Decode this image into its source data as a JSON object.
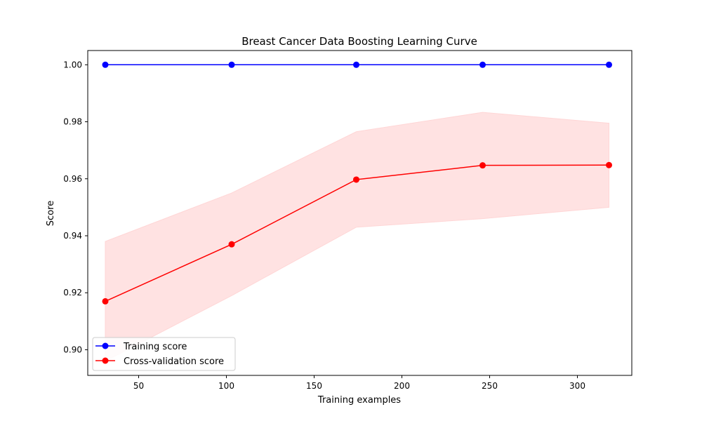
{
  "chart_data": {
    "type": "line",
    "title": "Breast Cancer Data Boosting Learning Curve",
    "xlabel": "Training examples",
    "ylabel": "Score",
    "xlim": [
      21,
      331
    ],
    "ylim": [
      0.891,
      1.005
    ],
    "xticks": [
      50,
      100,
      150,
      200,
      250,
      300
    ],
    "yticks": [
      0.9,
      0.92,
      0.94,
      0.96,
      0.98,
      1.0
    ],
    "x": [
      31,
      103,
      174,
      246,
      318
    ],
    "grid": false,
    "legend_position": "lower-left",
    "series": [
      {
        "name": "Training score",
        "color": "#0000ff",
        "values": [
          1.0,
          1.0,
          1.0,
          1.0,
          1.0
        ],
        "band_lower": [
          1.0,
          1.0,
          1.0,
          1.0,
          1.0
        ],
        "band_upper": [
          1.0,
          1.0,
          1.0,
          1.0,
          1.0
        ]
      },
      {
        "name": "Cross-validation score",
        "color": "#ff0000",
        "band_color": "#ffd6d6",
        "values": [
          0.917,
          0.937,
          0.9597,
          0.9647,
          0.9648
        ],
        "band_lower": [
          0.896,
          0.919,
          0.943,
          0.946,
          0.95
        ],
        "band_upper": [
          0.938,
          0.955,
          0.9765,
          0.9833,
          0.9795
        ]
      }
    ]
  }
}
